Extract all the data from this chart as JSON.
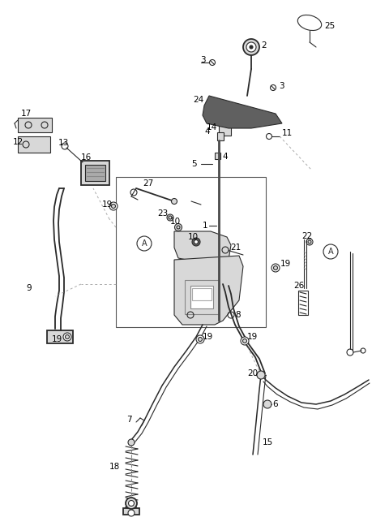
{
  "bg_color": "#ffffff",
  "line_color": "#2a2a2a",
  "gray_fill": "#b0b0b0",
  "gray_light": "#d8d8d8",
  "gray_dark": "#888888"
}
